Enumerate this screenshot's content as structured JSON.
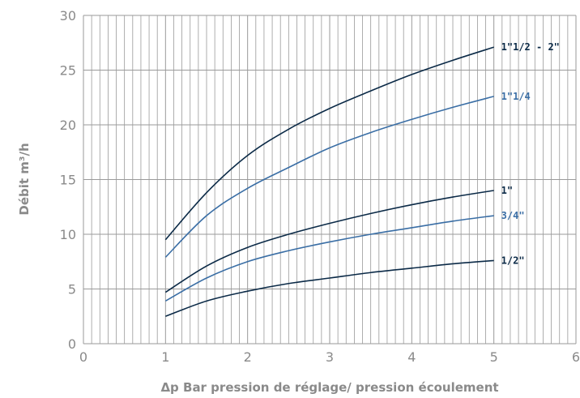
{
  "chart_data": {
    "type": "line",
    "xlabel": "Δp Bar pression de réglage/ pression écoulement",
    "ylabel": "Débit m³/h",
    "xlim": [
      0,
      6
    ],
    "ylim": [
      0,
      30
    ],
    "x_ticks": [
      "0",
      "1",
      "2",
      "3",
      "4",
      "5",
      "6"
    ],
    "y_ticks": [
      "0",
      "5",
      "10",
      "15",
      "20",
      "25",
      "30"
    ],
    "grid": true,
    "x": [
      1,
      1.5,
      2,
      2.5,
      3,
      3.5,
      4,
      4.5,
      5
    ],
    "series": [
      {
        "name": "1\"1/2 - 2\"",
        "color": "#0b2a47",
        "values": [
          9.5,
          13.8,
          17.2,
          19.6,
          21.5,
          23.1,
          24.6,
          25.9,
          27.1
        ]
      },
      {
        "name": "1\"1/4",
        "color": "#3a6ea5",
        "values": [
          7.9,
          11.7,
          14.2,
          16.1,
          17.9,
          19.3,
          20.5,
          21.6,
          22.6
        ]
      },
      {
        "name": "1\"",
        "color": "#0b2a47",
        "values": [
          4.7,
          7.1,
          8.8,
          10.0,
          11.0,
          11.9,
          12.7,
          13.4,
          14.0
        ]
      },
      {
        "name": "3/4\"",
        "color": "#3a6ea5",
        "values": [
          3.9,
          6.0,
          7.5,
          8.5,
          9.3,
          10.0,
          10.6,
          11.2,
          11.7
        ]
      },
      {
        "name": "1/2\"",
        "color": "#0b2a47",
        "values": [
          2.5,
          3.9,
          4.8,
          5.5,
          6.0,
          6.5,
          6.9,
          7.3,
          7.6
        ]
      }
    ]
  }
}
